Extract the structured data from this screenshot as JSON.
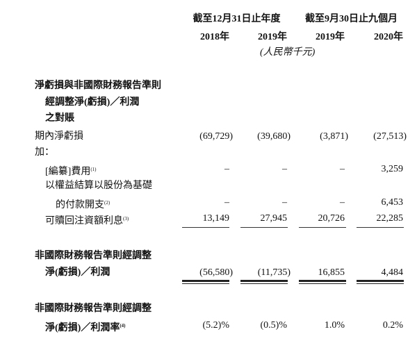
{
  "header": {
    "group1": "截至12月31日止年度",
    "group2": "截至9月30日止九個月",
    "years": [
      "2018年",
      "2019年",
      "2019年",
      "2020年"
    ],
    "unit": "(人民幣千元)"
  },
  "section_title": [
    "淨虧損與非國際財務報告準則",
    "經調整淨(虧損)／利潤",
    "之對賬"
  ],
  "rows": [
    {
      "label": "期內淨虧損",
      "values": [
        "(69,729)",
        "(39,680)",
        "(3,871)",
        "(27,513)"
      ]
    },
    {
      "label": "加："
    },
    {
      "label": "[編纂]費用",
      "note": "(1)",
      "values": [
        "–",
        "–",
        "–",
        "3,259"
      ]
    },
    {
      "label": "以權益結算以股份為基礎",
      "label2": "的付款開支",
      "note": "(2)",
      "values": [
        "–",
        "–",
        "–",
        "6,453"
      ]
    },
    {
      "label": "可贖回注資額利息",
      "note": "(3)",
      "values": [
        "13,149",
        "27,945",
        "20,726",
        "22,285"
      ]
    }
  ],
  "adjusted": {
    "label": "非國際財務報告準則經調整",
    "label2": "淨(虧損)／利潤",
    "values": [
      "(56,580)",
      "(11,735)",
      "16,855",
      "4,484"
    ]
  },
  "margin": {
    "label": "非國際財務報告準則經調整",
    "label2": "淨(虧損)／利潤率",
    "note": "(4)",
    "values": [
      "(5.2)%",
      "(0.5)%",
      "1.0%",
      "0.2%"
    ]
  }
}
